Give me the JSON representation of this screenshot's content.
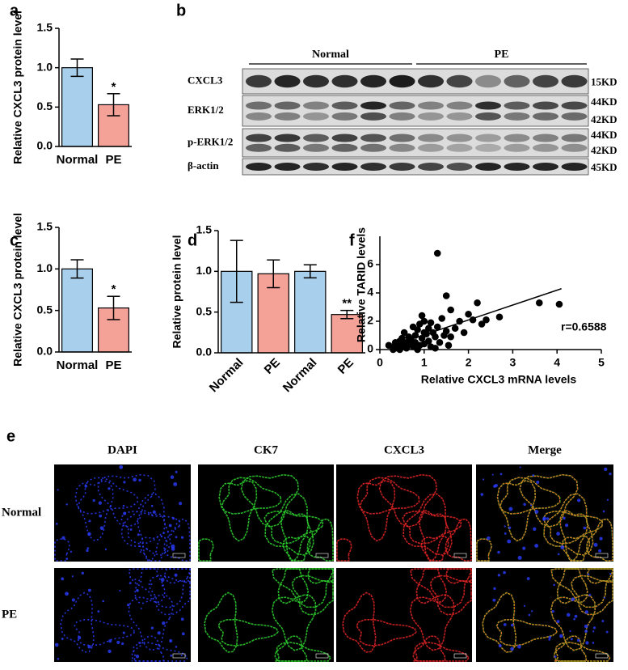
{
  "chart_data": [
    {
      "type": "bar",
      "panel": "a",
      "ylabel": "Relative CXCL3 protein level",
      "categories": [
        "Normal",
        "PE"
      ],
      "values": [
        1.0,
        0.53
      ],
      "errors": [
        0.11,
        0.14
      ],
      "colors": [
        "#a8d0ec",
        "#f4a198"
      ],
      "value_annotations": [
        null,
        "*"
      ],
      "ylim": [
        0,
        1.5
      ],
      "yticks": [
        {
          "value": 0,
          "label": "0.0"
        },
        {
          "value": 0.5,
          "label": "0.5"
        },
        {
          "value": 1,
          "label": "1.0"
        },
        {
          "value": 1.5,
          "label": "1.5"
        }
      ]
    },
    {
      "type": "bar",
      "panel": "c",
      "ylabel": "Relative CXCL3 protein level",
      "categories": [
        "Normal",
        "PE"
      ],
      "values": [
        1.0,
        0.53
      ],
      "errors": [
        0.11,
        0.14
      ],
      "colors": [
        "#a8d0ec",
        "#f4a198"
      ],
      "value_annotations": [
        null,
        "*"
      ],
      "ylim": [
        0,
        1.5
      ],
      "yticks": [
        {
          "value": 0,
          "label": "0.0"
        },
        {
          "value": 0.5,
          "label": "0.5"
        },
        {
          "value": 1,
          "label": "1.0"
        },
        {
          "value": 1.5,
          "label": "1.5"
        }
      ]
    },
    {
      "type": "bar",
      "panel": "d",
      "ylabel": "Relative protein level",
      "categories": [
        "Normal",
        "PE",
        "Normal",
        "PE"
      ],
      "values": [
        1.0,
        0.97,
        1.0,
        0.47
      ],
      "errors": [
        0.38,
        0.17,
        0.08,
        0.05
      ],
      "colors": [
        "#a8d0ec",
        "#f4a198",
        "#a8d0ec",
        "#f4a198"
      ],
      "value_annotations": [
        null,
        null,
        null,
        "**"
      ],
      "ylim": [
        0,
        1.5
      ],
      "yticks": [
        {
          "value": 0,
          "label": "0.0"
        },
        {
          "value": 0.5,
          "label": "0.5"
        },
        {
          "value": 1,
          "label": "1.0"
        },
        {
          "value": 1.5,
          "label": "1.5"
        }
      ]
    },
    {
      "type": "scatter",
      "panel": "f",
      "xlabel": "Relative CXCL3 mRNA levels",
      "ylabel": "Relative TARID levels",
      "annotation": "r=0.6588",
      "series": [
        {
          "color": "#000000",
          "x": [
            0.2,
            0.3,
            0.35,
            0.4,
            0.4,
            0.45,
            0.5,
            0.5,
            0.55,
            0.6,
            0.6,
            0.65,
            0.7,
            0.7,
            0.75,
            0.8,
            0.8,
            0.85,
            0.9,
            0.9,
            0.95,
            1.0,
            1.0,
            1.05,
            1.1,
            1.1,
            1.15,
            1.2,
            1.25,
            1.3,
            1.3,
            1.35,
            1.4,
            1.45,
            1.5,
            1.5,
            1.55,
            1.6,
            1.7,
            1.8,
            1.9,
            2.0,
            2.1,
            2.2,
            2.3,
            2.4,
            2.7,
            3.6,
            4.05,
            0.3,
            0.55,
            0.75,
            0.95,
            1.15,
            1.6,
            0.45,
            0.85,
            1.25,
            0.6,
            1.0
          ],
          "values": [
            0.3,
            0.2,
            0.5,
            0.1,
            0.4,
            0.6,
            0.3,
            0.8,
            0.2,
            0.5,
            0.1,
            0.9,
            0.4,
            0.7,
            0.2,
            1.0,
            0.5,
            1.4,
            0.3,
            1.8,
            0.8,
            2.0,
            0.4,
            1.1,
            0.6,
            1.5,
            0.2,
            1.2,
            0.9,
            6.8,
            1.6,
            0.5,
            2.2,
            1.0,
            3.8,
            1.3,
            0.3,
            2.8,
            1.5,
            2.0,
            1.2,
            2.5,
            2.1,
            3.3,
            1.8,
            2.1,
            2.3,
            3.3,
            3.2,
            0.0,
            1.2,
            1.6,
            2.4,
            1.9,
            0.9,
            0.0,
            0.0,
            0.1,
            0.3,
            1.2
          ]
        }
      ],
      "fit": {
        "color": "#000000",
        "x": [
          0.3,
          4.1
        ],
        "values": [
          0.3,
          4.3
        ]
      },
      "xlim": [
        0,
        5
      ],
      "xticks": [
        0,
        1,
        2,
        3,
        4,
        5
      ],
      "ylim": [
        0,
        8
      ],
      "yticks": [
        0,
        2,
        4,
        6
      ]
    }
  ],
  "blot": {
    "panel": "b",
    "groups": [
      "Normal",
      "PE"
    ],
    "rows": [
      {
        "label": "CXCL3",
        "sizes": [
          "15KD"
        ]
      },
      {
        "label": "ERK1/2",
        "sizes": [
          "44KD",
          "42KD"
        ]
      },
      {
        "label": "p-ERK1/2",
        "sizes": [
          "44KD",
          "42KD"
        ]
      },
      {
        "label": "β-actin",
        "sizes": [
          "45KD"
        ]
      }
    ]
  },
  "micrographs": {
    "panel": "e",
    "columns": [
      "DAPI",
      "CK7",
      "CXCL3",
      "Merge"
    ],
    "rows": [
      "Normal",
      "PE"
    ]
  }
}
